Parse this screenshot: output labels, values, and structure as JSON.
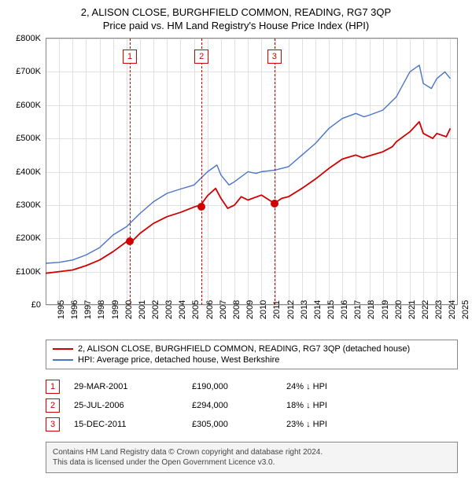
{
  "title": {
    "line1": "2, ALISON CLOSE, BURGHFIELD COMMON, READING, RG7 3QP",
    "line2": "Price paid vs. HM Land Registry's House Price Index (HPI)"
  },
  "chart": {
    "type": "line",
    "x_min": 1995,
    "x_max": 2025.5,
    "y_min": 0,
    "y_max": 800000,
    "y_ticks": [
      0,
      100000,
      200000,
      300000,
      400000,
      500000,
      600000,
      700000,
      800000
    ],
    "y_tick_labels": [
      "£0",
      "£100K",
      "£200K",
      "£300K",
      "£400K",
      "£500K",
      "£600K",
      "£700K",
      "£800K"
    ],
    "x_ticks": [
      1995,
      1996,
      1997,
      1998,
      1999,
      2000,
      2001,
      2002,
      2003,
      2004,
      2005,
      2006,
      2007,
      2008,
      2009,
      2010,
      2011,
      2012,
      2013,
      2014,
      2015,
      2016,
      2017,
      2018,
      2019,
      2020,
      2021,
      2022,
      2023,
      2024,
      2025
    ],
    "grid_color": "#e0e0e0",
    "background_color": "#ffffff",
    "series": [
      {
        "name": "property",
        "color": "#d00000",
        "width": 1.8,
        "points": [
          [
            1995,
            95000
          ],
          [
            1996,
            100000
          ],
          [
            1997,
            105000
          ],
          [
            1998,
            118000
          ],
          [
            1999,
            135000
          ],
          [
            2000,
            160000
          ],
          [
            2001,
            190000
          ],
          [
            2001.5,
            195000
          ],
          [
            2002,
            215000
          ],
          [
            2003,
            245000
          ],
          [
            2004,
            265000
          ],
          [
            2005,
            278000
          ],
          [
            2006,
            294000
          ],
          [
            2006.5,
            300000
          ],
          [
            2007,
            328000
          ],
          [
            2007.6,
            350000
          ],
          [
            2008,
            320000
          ],
          [
            2008.5,
            290000
          ],
          [
            2009,
            300000
          ],
          [
            2009.5,
            325000
          ],
          [
            2010,
            315000
          ],
          [
            2011,
            330000
          ],
          [
            2011.96,
            305000
          ],
          [
            2012.5,
            320000
          ],
          [
            2013,
            325000
          ],
          [
            2014,
            350000
          ],
          [
            2015,
            378000
          ],
          [
            2016,
            410000
          ],
          [
            2017,
            438000
          ],
          [
            2018,
            450000
          ],
          [
            2018.5,
            442000
          ],
          [
            2019,
            448000
          ],
          [
            2020,
            460000
          ],
          [
            2020.7,
            475000
          ],
          [
            2021,
            490000
          ],
          [
            2022,
            520000
          ],
          [
            2022.7,
            550000
          ],
          [
            2023,
            515000
          ],
          [
            2023.7,
            500000
          ],
          [
            2024,
            515000
          ],
          [
            2024.7,
            505000
          ],
          [
            2025,
            530000
          ]
        ]
      },
      {
        "name": "hpi",
        "color": "#4a74c9",
        "width": 1.4,
        "points": [
          [
            1995,
            125000
          ],
          [
            1996,
            128000
          ],
          [
            1997,
            135000
          ],
          [
            1998,
            150000
          ],
          [
            1999,
            172000
          ],
          [
            2000,
            210000
          ],
          [
            2001,
            235000
          ],
          [
            2002,
            275000
          ],
          [
            2003,
            310000
          ],
          [
            2004,
            335000
          ],
          [
            2005,
            348000
          ],
          [
            2006,
            360000
          ],
          [
            2007,
            400000
          ],
          [
            2007.7,
            420000
          ],
          [
            2008,
            390000
          ],
          [
            2008.6,
            360000
          ],
          [
            2009,
            370000
          ],
          [
            2010,
            400000
          ],
          [
            2010.6,
            395000
          ],
          [
            2011,
            400000
          ],
          [
            2012,
            405000
          ],
          [
            2013,
            415000
          ],
          [
            2014,
            450000
          ],
          [
            2015,
            485000
          ],
          [
            2016,
            530000
          ],
          [
            2017,
            560000
          ],
          [
            2018,
            575000
          ],
          [
            2018.6,
            565000
          ],
          [
            2019,
            570000
          ],
          [
            2020,
            585000
          ],
          [
            2021,
            625000
          ],
          [
            2022,
            700000
          ],
          [
            2022.7,
            720000
          ],
          [
            2023,
            665000
          ],
          [
            2023.6,
            650000
          ],
          [
            2024,
            680000
          ],
          [
            2024.6,
            700000
          ],
          [
            2025,
            680000
          ]
        ]
      }
    ],
    "events": [
      {
        "n": "1",
        "year": 2001.24,
        "price": 190000,
        "color": "#d00000"
      },
      {
        "n": "2",
        "year": 2006.56,
        "price": 294000,
        "color": "#d00000"
      },
      {
        "n": "3",
        "year": 2011.96,
        "price": 305000,
        "color": "#d00000"
      }
    ],
    "marker_color": "#d00000",
    "marker_radius": 5
  },
  "legend": {
    "items": [
      {
        "color": "#d00000",
        "label": "2, ALISON CLOSE, BURGHFIELD COMMON, READING, RG7 3QP (detached house)"
      },
      {
        "color": "#4a74c9",
        "label": "HPI: Average price, detached house, West Berkshire"
      }
    ]
  },
  "events_table": {
    "rows": [
      {
        "n": "1",
        "date": "29-MAR-2001",
        "price": "£190,000",
        "pct": "24% ↓ HPI"
      },
      {
        "n": "2",
        "date": "25-JUL-2006",
        "price": "£294,000",
        "pct": "18% ↓ HPI"
      },
      {
        "n": "3",
        "date": "15-DEC-2011",
        "price": "£305,000",
        "pct": "23% ↓ HPI"
      }
    ]
  },
  "footer": {
    "line1": "Contains HM Land Registry data © Crown copyright and database right 2024.",
    "line2": "This data is licensed under the Open Government Licence v3.0."
  }
}
